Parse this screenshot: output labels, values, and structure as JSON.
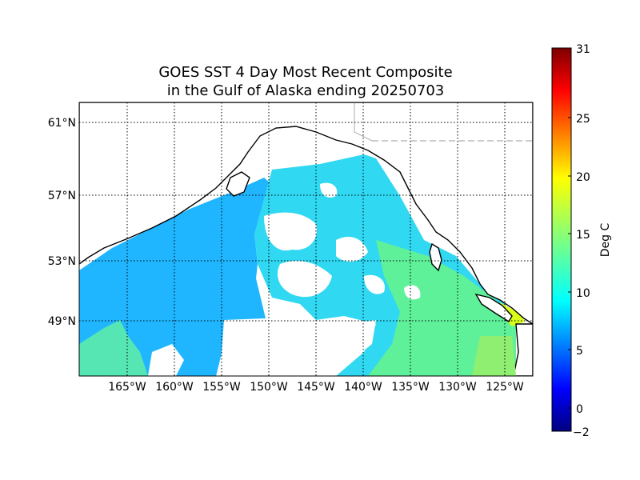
{
  "figure": {
    "title_line1": "GOES SST 4 Day Most Recent Composite",
    "title_line2": "in the Gulf of Alaska ending 20250703"
  },
  "map": {
    "latitude_labels": [
      "61°N",
      "57°N",
      "53°N",
      "49°N"
    ],
    "longitude_labels": [
      "165°W",
      "160°W",
      "155°W",
      "150°W",
      "145°W",
      "140°W",
      "135°W",
      "130°W",
      "125°W"
    ],
    "land_color": "#ffffff",
    "coastline_color": "#000000",
    "cloud_mask_color": "#ffffff",
    "gridlines": "dotted"
  },
  "colorbar": {
    "label": "Deg C",
    "tick_labels": [
      "31",
      "25",
      "20",
      "15",
      "10",
      "5",
      "0",
      "−2"
    ],
    "min": -2,
    "max": 31,
    "colormap": "jet",
    "colors": [
      "#00007f",
      "#0000ff",
      "#007fff",
      "#00ffff",
      "#7fff7f",
      "#ffff00",
      "#ff7f00",
      "#ff0000",
      "#7f0000"
    ]
  },
  "sst_field": {
    "dominant_west_value_degC": 9,
    "dominant_east_value_degC": 13,
    "nearshore_warm_value_degC": 19
  }
}
